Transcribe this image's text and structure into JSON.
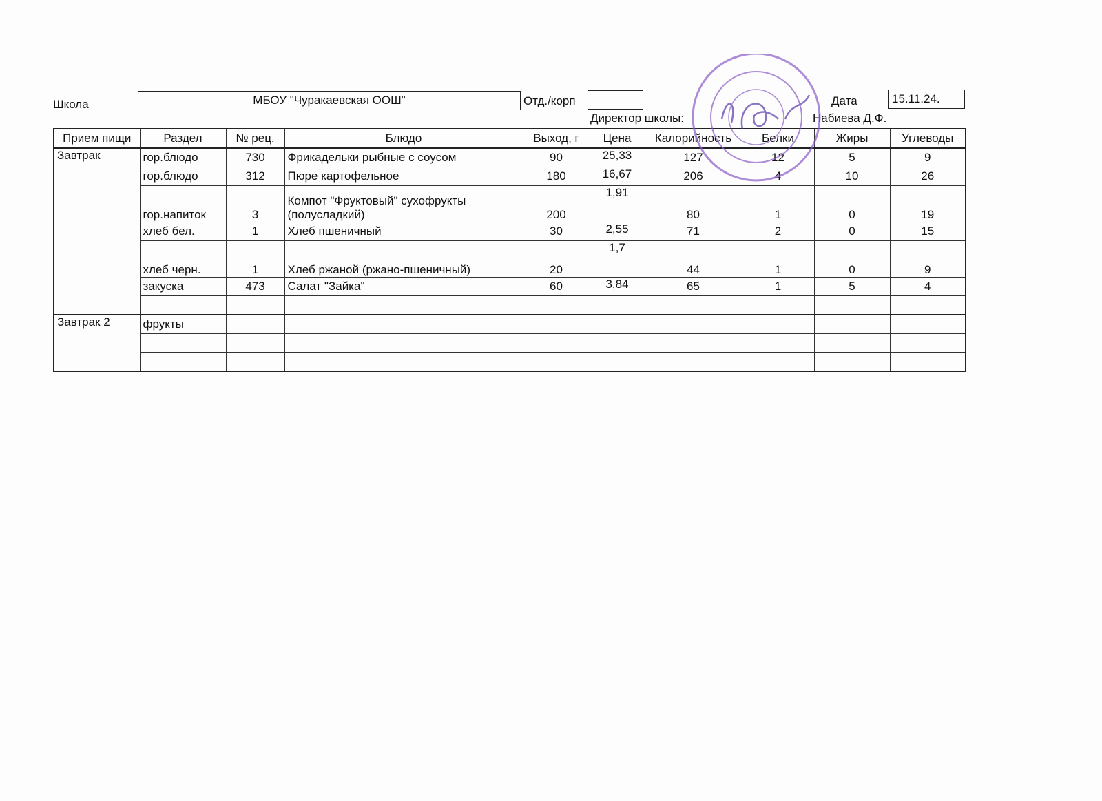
{
  "header": {
    "school_label": "Школа",
    "school_value": "МБОУ \"Чуракаевская ООШ\"",
    "dept_label": "Отд./корп",
    "dept_value": "",
    "date_label": "Дата",
    "date_value": "15.11.24.",
    "director_label": "Директор школы:",
    "director_name": "Набиева Д.Ф."
  },
  "table": {
    "columns": [
      "Прием пищи",
      "Раздел",
      "№ рец.",
      "Блюдо",
      "Выход, г",
      "Цена",
      "Калорийность",
      "Белки",
      "Жиры",
      "Углеводы"
    ],
    "rows": [
      {
        "meal": "Завтрак",
        "section": "гор.блюдо",
        "recipe": "730",
        "dish": "Фрикадельки рыбные с соусом",
        "yield": "90",
        "price": "25,33",
        "calories": "127",
        "protein": "12",
        "fat": "5",
        "carbs": "9"
      },
      {
        "meal": "",
        "section": "гор.блюдо",
        "recipe": "312",
        "dish": "Пюре картофельное",
        "yield": "180",
        "price": "16,67",
        "calories": "206",
        "protein": "4",
        "fat": "10",
        "carbs": "26"
      },
      {
        "meal": "",
        "section": "гор.напиток",
        "recipe": "3",
        "dish": "Компот \"Фруктовый\" сухофрукты (полусладкий)",
        "yield": "200",
        "price": "1,91",
        "calories": "80",
        "protein": "1",
        "fat": "0",
        "carbs": "19"
      },
      {
        "meal": "",
        "section": "хлеб бел.",
        "recipe": "1",
        "dish": "Хлеб пшеничный",
        "yield": "30",
        "price": "2,55",
        "calories": "71",
        "protein": "2",
        "fat": "0",
        "carbs": "15"
      },
      {
        "meal": "",
        "section": "хлеб черн.",
        "recipe": "1",
        "dish": "Хлеб ржаной (ржано-пшеничный)",
        "yield": "20",
        "price": "1,7",
        "calories": "44",
        "protein": "1",
        "fat": "0",
        "carbs": "9"
      },
      {
        "meal": "",
        "section": "закуска",
        "recipe": "473",
        "dish": "Салат \"Зайка\"",
        "yield": "60",
        "price": "3,84",
        "calories": "65",
        "protein": "1",
        "fat": "5",
        "carbs": "4"
      }
    ],
    "meal2": {
      "meal": "Завтрак 2",
      "section": "фрукты"
    }
  },
  "stamp_color": "#8a5cc8"
}
